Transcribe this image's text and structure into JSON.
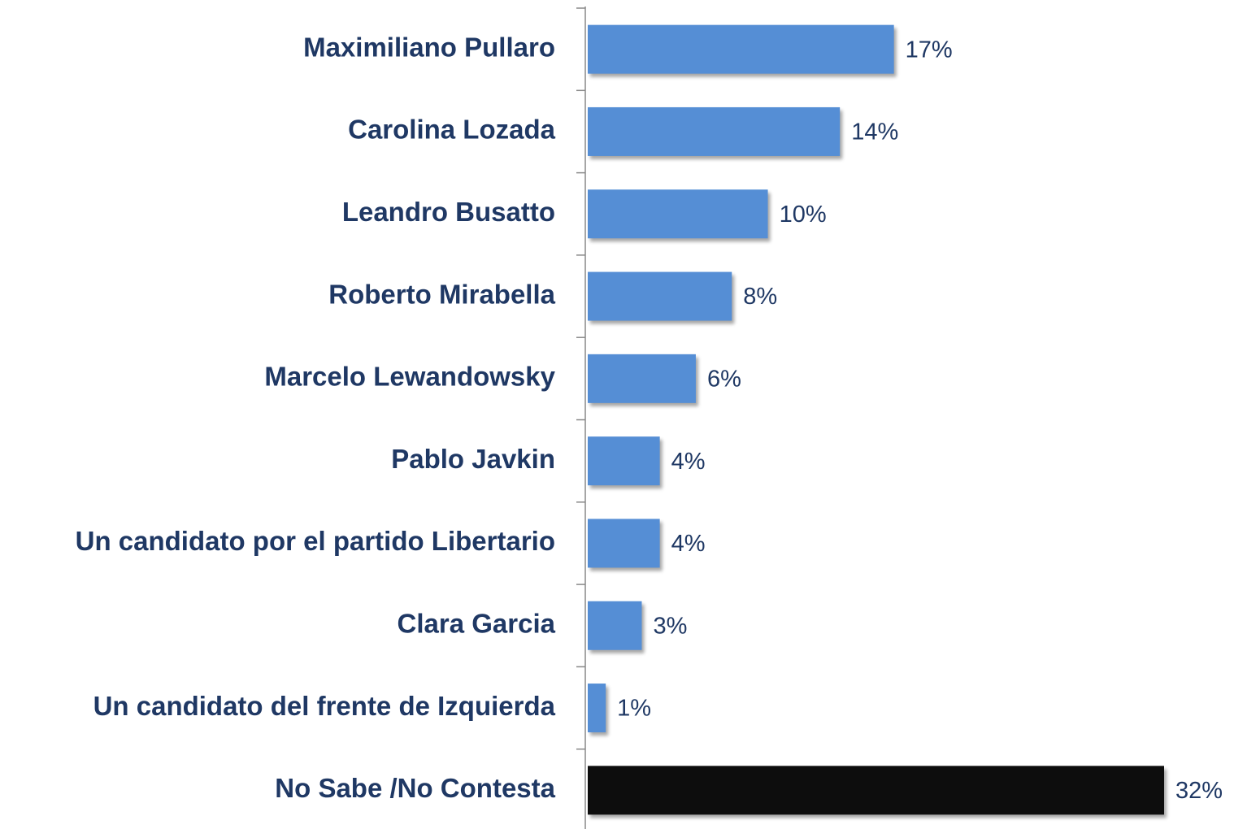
{
  "chart_data": {
    "type": "bar",
    "orientation": "horizontal",
    "categories": [
      "Maximiliano Pullaro",
      "Carolina Lozada",
      "Leandro Busatto",
      "Roberto Mirabella",
      "Marcelo Lewandowsky",
      "Pablo Javkin",
      "Un candidato por el partido Libertario",
      "Clara Garcia",
      "Un candidato del frente de Izquierda",
      "No Sabe /No Contesta"
    ],
    "values": [
      17,
      14,
      10,
      8,
      6,
      4,
      4,
      3,
      1,
      32
    ],
    "value_labels": [
      "17%",
      "14%",
      "10%",
      "8%",
      "6%",
      "4%",
      "4%",
      "3%",
      "1%",
      "32%"
    ],
    "colors": [
      "#558ed5",
      "#558ed5",
      "#558ed5",
      "#558ed5",
      "#558ed5",
      "#558ed5",
      "#558ed5",
      "#558ed5",
      "#558ed5",
      "#0d0d0d"
    ]
  }
}
